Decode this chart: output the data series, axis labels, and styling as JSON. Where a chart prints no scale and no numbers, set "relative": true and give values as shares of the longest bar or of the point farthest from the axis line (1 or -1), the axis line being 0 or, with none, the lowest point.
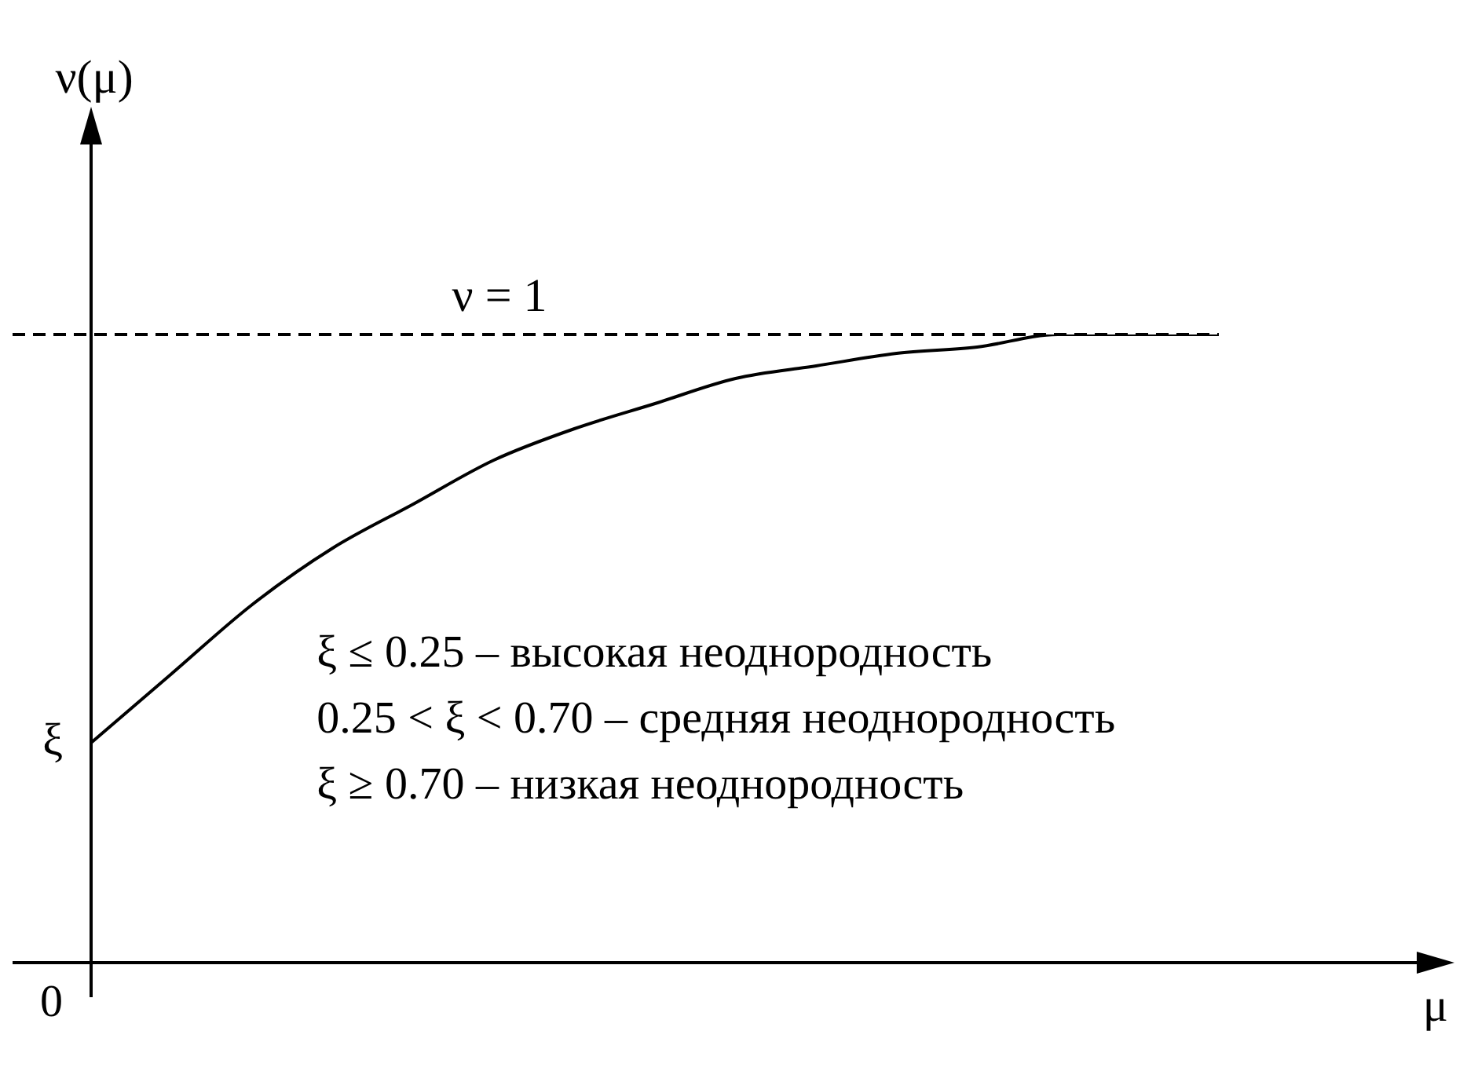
{
  "chart_data": {
    "type": "line",
    "xlabel": "μ",
    "ylabel": "ν(μ)",
    "relative": true,
    "categories": [
      null,
      null,
      null,
      null,
      null,
      null,
      null,
      null,
      null,
      null,
      null,
      null,
      null,
      null,
      null
    ],
    "series": [
      {
        "color": "#000000",
        "values": [
          0.35,
          0.46,
          0.57,
          0.66,
          0.73,
          0.8,
          0.85,
          0.89,
          0.93,
          0.95,
          0.97,
          0.98,
          1.0,
          1.0,
          1.0
        ]
      }
    ],
    "ref_lines": [
      {
        "axis": "y",
        "value": 1,
        "label": "ν = 1",
        "color": "#000000",
        "line_style": "dashed"
      }
    ],
    "annotations": [
      "0",
      "ξ",
      "ξ ≤ 0.25 – высокая неоднородность",
      "0.25 < ξ < 0.70 – средняя неоднородность",
      "ξ ≥ 0.70 – низкая неоднородность"
    ],
    "grid": false,
    "legend": false,
    "marker": "none",
    "line_style": "solid"
  }
}
